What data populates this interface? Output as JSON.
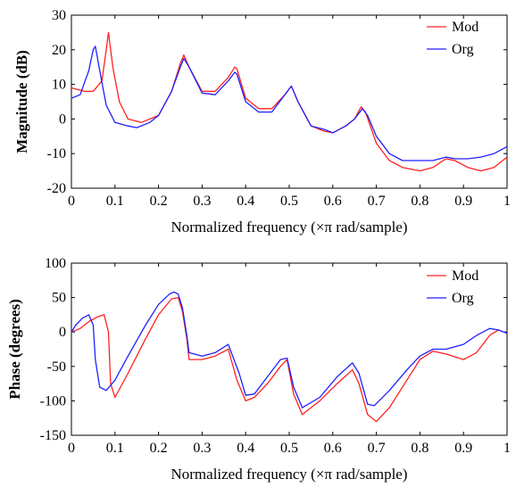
{
  "chart_data": [
    {
      "type": "line",
      "xlabel": "Normalized frequency (×π rad/sample)",
      "ylabel": "Magnitude (dB)",
      "xlim": [
        0,
        1
      ],
      "ylim": [
        -20,
        30
      ],
      "xticks": [
        0,
        0.1,
        0.2,
        0.3,
        0.4,
        0.5,
        0.6,
        0.7,
        0.8,
        0.9,
        1
      ],
      "xtick_labels": [
        "0",
        "0.1",
        "0.2",
        "0.3",
        "0.4",
        "0.5",
        "0.6",
        "0.7",
        "0.8",
        "0.9",
        "1"
      ],
      "yticks": [
        -20,
        -10,
        0,
        10,
        20,
        30
      ],
      "ytick_labels": [
        "-20",
        "-10",
        "0",
        "10",
        "20",
        "30"
      ],
      "grid": false,
      "legend_position": "top-right",
      "series": [
        {
          "name": "Mod",
          "color": "#ff2020",
          "x": [
            0,
            0.03,
            0.05,
            0.07,
            0.08,
            0.085,
            0.095,
            0.11,
            0.13,
            0.16,
            0.2,
            0.23,
            0.25,
            0.258,
            0.27,
            0.3,
            0.33,
            0.36,
            0.375,
            0.38,
            0.4,
            0.43,
            0.46,
            0.49,
            0.505,
            0.52,
            0.55,
            0.58,
            0.6,
            0.63,
            0.65,
            0.665,
            0.675,
            0.7,
            0.73,
            0.76,
            0.8,
            0.83,
            0.86,
            0.88,
            0.91,
            0.94,
            0.97,
            1
          ],
          "y": [
            9,
            8,
            8,
            11,
            20,
            25,
            15,
            5,
            0,
            -1,
            1,
            8,
            16,
            18.5,
            15,
            8,
            8,
            12,
            15,
            14.5,
            6,
            3,
            3,
            7,
            9.5,
            5,
            -2,
            -3.5,
            -4,
            -2,
            0,
            3.5,
            2,
            -7,
            -12,
            -14,
            -15,
            -14,
            -11.5,
            -12,
            -14,
            -15,
            -14,
            -11
          ]
        },
        {
          "name": "Org",
          "color": "#2020ff",
          "x": [
            0,
            0.02,
            0.04,
            0.05,
            0.055,
            0.065,
            0.08,
            0.1,
            0.13,
            0.15,
            0.18,
            0.2,
            0.23,
            0.25,
            0.258,
            0.27,
            0.3,
            0.33,
            0.36,
            0.375,
            0.38,
            0.4,
            0.43,
            0.46,
            0.49,
            0.505,
            0.52,
            0.55,
            0.58,
            0.6,
            0.63,
            0.65,
            0.668,
            0.68,
            0.7,
            0.73,
            0.76,
            0.8,
            0.83,
            0.86,
            0.88,
            0.91,
            0.94,
            0.97,
            1
          ],
          "y": [
            6,
            7,
            14,
            20,
            21,
            14,
            4,
            -1,
            -2,
            -2.5,
            -1,
            1,
            8,
            15,
            17.5,
            15,
            7.5,
            7,
            11,
            13.5,
            13,
            5,
            2,
            2,
            7,
            9.5,
            5,
            -2,
            -3,
            -4,
            -2,
            0,
            3,
            1,
            -5,
            -10,
            -12,
            -12,
            -12,
            -11,
            -11.5,
            -11.5,
            -11,
            -10,
            -8
          ]
        }
      ]
    },
    {
      "type": "line",
      "xlabel": "Normalized frequency (×π rad/sample)",
      "ylabel": "Phase (degrees)",
      "xlim": [
        0,
        1
      ],
      "ylim": [
        -150,
        100
      ],
      "xticks": [
        0,
        0.1,
        0.2,
        0.3,
        0.4,
        0.5,
        0.6,
        0.7,
        0.8,
        0.9,
        1
      ],
      "xtick_labels": [
        "0",
        "0.1",
        "0.2",
        "0.3",
        "0.4",
        "0.5",
        "0.6",
        "0.7",
        "0.8",
        "0.9",
        "1"
      ],
      "yticks": [
        -150,
        -100,
        -50,
        0,
        50,
        100
      ],
      "ytick_labels": [
        "-150",
        "-100",
        "-50",
        "0",
        "50",
        "100"
      ],
      "grid": false,
      "legend_position": "top-right",
      "series": [
        {
          "name": "Mod",
          "color": "#ff2020",
          "x": [
            0,
            0.02,
            0.04,
            0.06,
            0.075,
            0.085,
            0.09,
            0.1,
            0.13,
            0.17,
            0.2,
            0.23,
            0.245,
            0.255,
            0.265,
            0.27,
            0.3,
            0.33,
            0.36,
            0.38,
            0.4,
            0.42,
            0.45,
            0.48,
            0.495,
            0.51,
            0.53,
            0.57,
            0.61,
            0.645,
            0.66,
            0.68,
            0.7,
            0.73,
            0.77,
            0.8,
            0.83,
            0.86,
            0.9,
            0.93,
            0.96,
            0.98,
            1
          ],
          "y": [
            0,
            5,
            15,
            22,
            25,
            0,
            -75,
            -95,
            -60,
            -10,
            25,
            48,
            50,
            30,
            -10,
            -40,
            -40,
            -35,
            -25,
            -70,
            -100,
            -95,
            -75,
            -50,
            -40,
            -90,
            -120,
            -100,
            -75,
            -55,
            -75,
            -120,
            -130,
            -110,
            -70,
            -40,
            -28,
            -32,
            -40,
            -30,
            -5,
            3,
            -2
          ]
        },
        {
          "name": "Org",
          "color": "#2020ff",
          "x": [
            0,
            0.01,
            0.025,
            0.04,
            0.05,
            0.055,
            0.065,
            0.08,
            0.1,
            0.13,
            0.17,
            0.2,
            0.225,
            0.235,
            0.245,
            0.255,
            0.265,
            0.27,
            0.3,
            0.33,
            0.36,
            0.385,
            0.4,
            0.42,
            0.45,
            0.48,
            0.495,
            0.51,
            0.53,
            0.57,
            0.61,
            0.645,
            0.66,
            0.68,
            0.695,
            0.73,
            0.77,
            0.8,
            0.83,
            0.86,
            0.9,
            0.93,
            0.96,
            0.98,
            1
          ],
          "y": [
            0,
            10,
            20,
            25,
            10,
            -40,
            -80,
            -85,
            -70,
            -35,
            10,
            40,
            55,
            58,
            55,
            35,
            -5,
            -30,
            -35,
            -30,
            -18,
            -60,
            -92,
            -90,
            -65,
            -40,
            -38,
            -80,
            -110,
            -95,
            -65,
            -45,
            -60,
            -105,
            -107,
            -85,
            -55,
            -35,
            -25,
            -25,
            -18,
            -5,
            5,
            3,
            -2
          ]
        }
      ]
    }
  ]
}
